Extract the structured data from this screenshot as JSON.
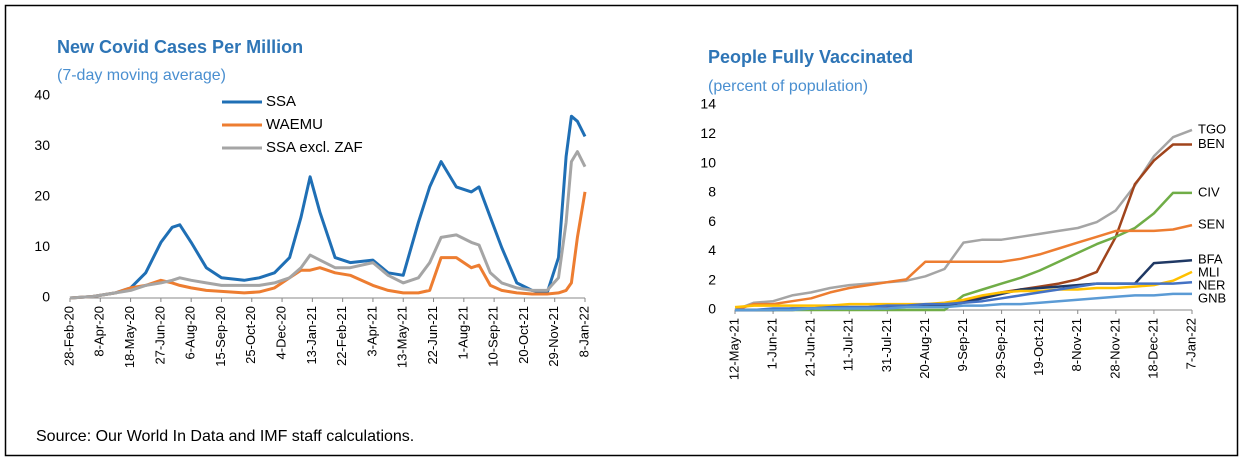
{
  "chart_data": [
    {
      "type": "line",
      "title": "New Covid Cases Per Million",
      "subtitle": "(7-day moving average)",
      "x": [
        "2020-02-28",
        "2020-03-29",
        "2020-04-28",
        "2020-05-18",
        "2020-06-07",
        "2020-06-27",
        "2020-07-12",
        "2020-07-22",
        "2020-08-06",
        "2020-08-26",
        "2020-09-15",
        "2020-10-15",
        "2020-11-04",
        "2020-11-24",
        "2020-12-14",
        "2020-12-29",
        "2021-01-10",
        "2021-01-23",
        "2021-02-12",
        "2021-03-04",
        "2021-04-03",
        "2021-04-23",
        "2021-05-13",
        "2021-06-02",
        "2021-06-17",
        "2021-07-02",
        "2021-07-22",
        "2021-08-11",
        "2021-08-21",
        "2021-09-05",
        "2021-09-20",
        "2021-10-10",
        "2021-10-30",
        "2021-11-19",
        "2021-12-04",
        "2021-12-14",
        "2021-12-21",
        "2021-12-29",
        "2022-01-08"
      ],
      "series": [
        {
          "name": "SSA",
          "color": "#1f6fb5",
          "values": [
            0,
            0.3,
            1,
            2,
            5,
            11,
            14,
            14.5,
            11,
            6,
            4,
            3.5,
            4,
            5,
            8,
            16,
            24,
            17,
            8,
            7,
            7.5,
            5,
            4.5,
            15,
            22,
            27,
            22,
            21,
            22,
            16,
            10,
            3,
            1.5,
            1,
            8,
            28,
            36,
            35,
            32
          ]
        },
        {
          "name": "WAEMU",
          "color": "#ed7d31",
          "values": [
            0,
            0.3,
            1,
            2,
            2.5,
            3.5,
            3,
            2.5,
            2,
            1.5,
            1.3,
            1,
            1.2,
            2,
            4,
            5.5,
            5.5,
            6,
            5,
            4.5,
            2.5,
            1.5,
            1,
            1,
            1.5,
            8,
            8,
            6,
            6.5,
            2.5,
            1.5,
            1,
            0.8,
            0.8,
            1,
            1.5,
            3,
            12,
            21
          ]
        },
        {
          "name": "SSA excl. ZAF",
          "color": "#a5a5a5",
          "values": [
            0,
            0.3,
            1,
            1.5,
            2.5,
            3,
            3.5,
            4,
            3.5,
            3,
            2.5,
            2.5,
            2.5,
            3,
            4,
            6,
            8.5,
            7.5,
            6,
            6,
            7,
            4.5,
            3,
            4,
            7,
            12,
            12.5,
            11,
            10.5,
            5,
            3,
            2,
            1.5,
            1.5,
            4,
            15,
            27,
            29,
            26
          ]
        }
      ],
      "xlim": [
        "2020-02-28",
        "2022-01-08"
      ],
      "xticks": [
        {
          "value": "2020-02-28",
          "label": "28-Feb-20"
        },
        {
          "value": "2020-04-08",
          "label": "8-Apr-20"
        },
        {
          "value": "2020-05-18",
          "label": "18-May-20"
        },
        {
          "value": "2020-06-27",
          "label": "27-Jun-20"
        },
        {
          "value": "2020-08-06",
          "label": "6-Aug-20"
        },
        {
          "value": "2020-09-15",
          "label": "15-Sep-20"
        },
        {
          "value": "2020-10-25",
          "label": "25-Oct-20"
        },
        {
          "value": "2020-12-04",
          "label": "4-Dec-20"
        },
        {
          "value": "2021-01-13",
          "label": "13-Jan-21"
        },
        {
          "value": "2021-02-22",
          "label": "22-Feb-21"
        },
        {
          "value": "2021-04-03",
          "label": "3-Apr-21"
        },
        {
          "value": "2021-05-13",
          "label": "13-May-21"
        },
        {
          "value": "2021-06-22",
          "label": "22-Jun-21"
        },
        {
          "value": "2021-08-01",
          "label": "1-Aug-21"
        },
        {
          "value": "2021-09-10",
          "label": "10-Sep-21"
        },
        {
          "value": "2021-10-20",
          "label": "20-Oct-21"
        },
        {
          "value": "2021-11-29",
          "label": "29-Nov-21"
        },
        {
          "value": "2022-01-08",
          "label": "8-Jan-22"
        }
      ],
      "ylim": [
        0,
        40
      ],
      "yticks": [
        0,
        10,
        20,
        30,
        40
      ],
      "grid": false,
      "legend": "top"
    },
    {
      "type": "line",
      "title": "People Fully Vaccinated",
      "subtitle": "(percent of population)",
      "x": [
        "2021-05-12",
        "2021-05-22",
        "2021-06-01",
        "2021-06-11",
        "2021-06-21",
        "2021-07-01",
        "2021-07-11",
        "2021-07-21",
        "2021-07-31",
        "2021-08-10",
        "2021-08-20",
        "2021-08-30",
        "2021-09-09",
        "2021-09-19",
        "2021-09-29",
        "2021-10-09",
        "2021-10-19",
        "2021-10-29",
        "2021-11-08",
        "2021-11-18",
        "2021-11-28",
        "2021-12-08",
        "2021-12-18",
        "2021-12-28",
        "2022-01-07"
      ],
      "series": [
        {
          "name": "TGO",
          "color": "#a5a5a5",
          "values": [
            0,
            0.5,
            0.6,
            1.0,
            1.2,
            1.5,
            1.7,
            1.8,
            1.9,
            2.0,
            2.3,
            2.8,
            4.6,
            4.8,
            4.8,
            5.0,
            5.2,
            5.4,
            5.6,
            6.0,
            6.8,
            8.5,
            10.5,
            11.8,
            12.3
          ]
        },
        {
          "name": "BEN",
          "color": "#a0441c",
          "values": [
            0,
            0,
            0,
            0,
            0.1,
            0.1,
            0.1,
            0.1,
            0.2,
            0.3,
            0.3,
            0.4,
            0.6,
            0.9,
            1.2,
            1.4,
            1.6,
            1.8,
            2.1,
            2.6,
            5.0,
            8.6,
            10.2,
            11.3,
            11.3
          ]
        },
        {
          "name": "CIV",
          "color": "#70ad47",
          "values": [
            0,
            0,
            0,
            0,
            0,
            0,
            0,
            0,
            0,
            0,
            0,
            0,
            1.0,
            1.4,
            1.8,
            2.2,
            2.7,
            3.3,
            3.9,
            4.5,
            5.0,
            5.6,
            6.6,
            8.0,
            8.0
          ]
        },
        {
          "name": "SEN",
          "color": "#ed7d31",
          "values": [
            0,
            0.4,
            0.4,
            0.6,
            0.8,
            1.2,
            1.5,
            1.7,
            1.9,
            2.1,
            3.3,
            3.3,
            3.3,
            3.3,
            3.3,
            3.5,
            3.8,
            4.2,
            4.6,
            5.0,
            5.4,
            5.4,
            5.4,
            5.5,
            5.8
          ]
        },
        {
          "name": "BFA",
          "color": "#1f3864",
          "values": [
            0,
            0,
            0,
            0.1,
            0.1,
            0.2,
            0.2,
            0.2,
            0.3,
            0.3,
            0.3,
            0.3,
            0.5,
            0.8,
            1.1,
            1.4,
            1.5,
            1.6,
            1.7,
            1.8,
            1.8,
            1.8,
            3.2,
            3.3,
            3.4
          ]
        },
        {
          "name": "MLI",
          "color": "#ffc000",
          "values": [
            0.2,
            0.3,
            0.3,
            0.3,
            0.3,
            0.3,
            0.4,
            0.4,
            0.4,
            0.4,
            0.4,
            0.5,
            0.7,
            1.0,
            1.2,
            1.3,
            1.3,
            1.4,
            1.4,
            1.5,
            1.5,
            1.6,
            1.7,
            2.0,
            2.6
          ]
        },
        {
          "name": "NER",
          "color": "#4472c4",
          "values": [
            0,
            0,
            0.1,
            0.1,
            0.1,
            0.2,
            0.2,
            0.2,
            0.3,
            0.3,
            0.4,
            0.4,
            0.5,
            0.6,
            0.8,
            1.0,
            1.2,
            1.4,
            1.6,
            1.8,
            1.8,
            1.8,
            1.8,
            1.8,
            1.9
          ]
        },
        {
          "name": "GNB",
          "color": "#5b9bd5",
          "values": [
            0,
            0,
            0,
            0,
            0.1,
            0.1,
            0.1,
            0.1,
            0.1,
            0.2,
            0.2,
            0.2,
            0.3,
            0.3,
            0.4,
            0.4,
            0.5,
            0.6,
            0.7,
            0.8,
            0.9,
            1.0,
            1.0,
            1.1,
            1.1
          ]
        }
      ],
      "xlim": [
        "2021-05-12",
        "2022-01-07"
      ],
      "xticks": [
        {
          "value": "2021-05-12",
          "label": "12-May-21"
        },
        {
          "value": "2021-06-01",
          "label": "1-Jun-21"
        },
        {
          "value": "2021-06-21",
          "label": "21-Jun-21"
        },
        {
          "value": "2021-07-11",
          "label": "11-Jul-21"
        },
        {
          "value": "2021-07-31",
          "label": "31-Jul-21"
        },
        {
          "value": "2021-08-20",
          "label": "20-Aug-21"
        },
        {
          "value": "2021-09-09",
          "label": "9-Sep-21"
        },
        {
          "value": "2021-09-29",
          "label": "29-Sep-21"
        },
        {
          "value": "2021-10-19",
          "label": "19-Oct-21"
        },
        {
          "value": "2021-11-08",
          "label": "8-Nov-21"
        },
        {
          "value": "2021-11-28",
          "label": "28-Nov-21"
        },
        {
          "value": "2021-12-18",
          "label": "18-Dec-21"
        },
        {
          "value": "2022-01-07",
          "label": "7-Jan-22"
        }
      ],
      "ylim": [
        0,
        14
      ],
      "yticks": [
        0,
        2,
        4,
        6,
        8,
        10,
        12,
        14
      ],
      "grid": false,
      "legend": "end"
    }
  ],
  "source": "Source: Our World In Data and IMF staff calculations."
}
